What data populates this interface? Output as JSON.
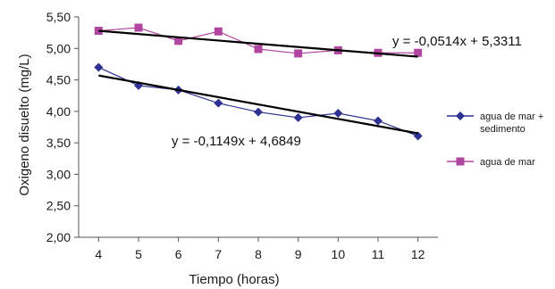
{
  "chart_data": {
    "type": "line",
    "xlabel": "Tiempo (horas)",
    "ylabel": "Oxigeno disuelto (mg/L)",
    "x": [
      4,
      5,
      6,
      7,
      8,
      9,
      10,
      11,
      12
    ],
    "xlim": [
      3.5,
      12.5
    ],
    "ylim": [
      2.0,
      5.5
    ],
    "y_ticks": [
      "2,00",
      "2,50",
      "3,00",
      "3,50",
      "4,00",
      "4,50",
      "5,00",
      "5,50"
    ],
    "x_ticks": [
      "4",
      "5",
      "6",
      "7",
      "8",
      "9",
      "10",
      "11",
      "12"
    ],
    "grid": false,
    "legend_position": "right",
    "series": [
      {
        "name": "agua de mar + sedimento",
        "name_lines": [
          "agua de mar +",
          "sedimento"
        ],
        "color": "#2e3192",
        "marker": "diamond",
        "values": [
          4.7,
          4.41,
          4.34,
          4.13,
          3.99,
          3.9,
          3.97,
          3.85,
          3.61
        ],
        "trendline": {
          "slope": -0.1149,
          "intercept": 4.6849,
          "equation": "y = -0,1149x + 4,6849"
        }
      },
      {
        "name": "agua de mar",
        "name_lines": [
          "agua de mar"
        ],
        "color": "#b0469f",
        "marker": "square",
        "values": [
          5.28,
          5.33,
          5.12,
          5.27,
          4.99,
          4.92,
          4.97,
          4.93,
          4.93
        ],
        "trendline": {
          "slope": -0.0514,
          "intercept": 5.3311,
          "equation": "y = -0,0514x + 5,3311"
        }
      }
    ],
    "trendline_color": "#000000"
  }
}
